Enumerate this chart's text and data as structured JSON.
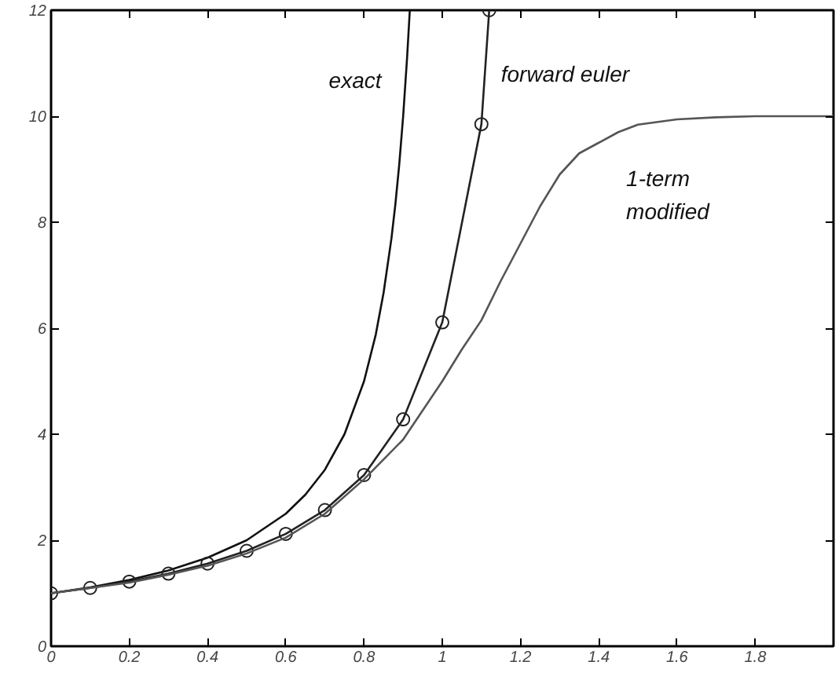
{
  "chart_data": {
    "type": "line",
    "xlim": [
      0,
      2
    ],
    "ylim": [
      0,
      12
    ],
    "xticks": [
      0,
      0.2,
      0.4,
      0.6,
      0.8,
      1,
      1.2,
      1.4,
      1.6,
      1.8
    ],
    "yticks": [
      0,
      2,
      4,
      6,
      8,
      10,
      12
    ],
    "series": [
      {
        "name": "exact",
        "color": "#111111",
        "marker": "none",
        "x": [
          0,
          0.1,
          0.2,
          0.3,
          0.4,
          0.5,
          0.6,
          0.65,
          0.7,
          0.75,
          0.8,
          0.83,
          0.85,
          0.87,
          0.88,
          0.89,
          0.9,
          0.91,
          0.917
        ],
        "values": [
          1,
          1.11,
          1.25,
          1.43,
          1.67,
          2,
          2.5,
          2.86,
          3.33,
          4,
          5,
          5.88,
          6.67,
          7.69,
          8.33,
          9.09,
          10,
          11.1,
          12
        ]
      },
      {
        "name": "forward euler",
        "color": "#222222",
        "marker": "circle",
        "x": [
          0,
          0.1,
          0.2,
          0.3,
          0.4,
          0.5,
          0.6,
          0.7,
          0.8,
          0.9,
          1,
          1.1,
          1.12
        ],
        "values": [
          1,
          1.1,
          1.22,
          1.37,
          1.56,
          1.8,
          2.12,
          2.57,
          3.23,
          4.28,
          6.11,
          9.85,
          12
        ]
      },
      {
        "name": "1-term\nmodified",
        "color": "#555555",
        "marker": "none",
        "x": [
          0,
          0.1,
          0.2,
          0.3,
          0.4,
          0.5,
          0.6,
          0.7,
          0.8,
          0.9,
          1,
          1.05,
          1.1,
          1.15,
          1.2,
          1.25,
          1.3,
          1.35,
          1.4,
          1.45,
          1.5,
          1.6,
          1.7,
          1.8,
          2
        ],
        "values": [
          1,
          1.1,
          1.2,
          1.35,
          1.52,
          1.75,
          2.05,
          2.5,
          3.15,
          3.9,
          5,
          5.6,
          6.15,
          6.9,
          7.6,
          8.3,
          8.9,
          9.3,
          9.5,
          9.7,
          9.84,
          9.94,
          9.98,
          10,
          10
        ]
      }
    ]
  }
}
